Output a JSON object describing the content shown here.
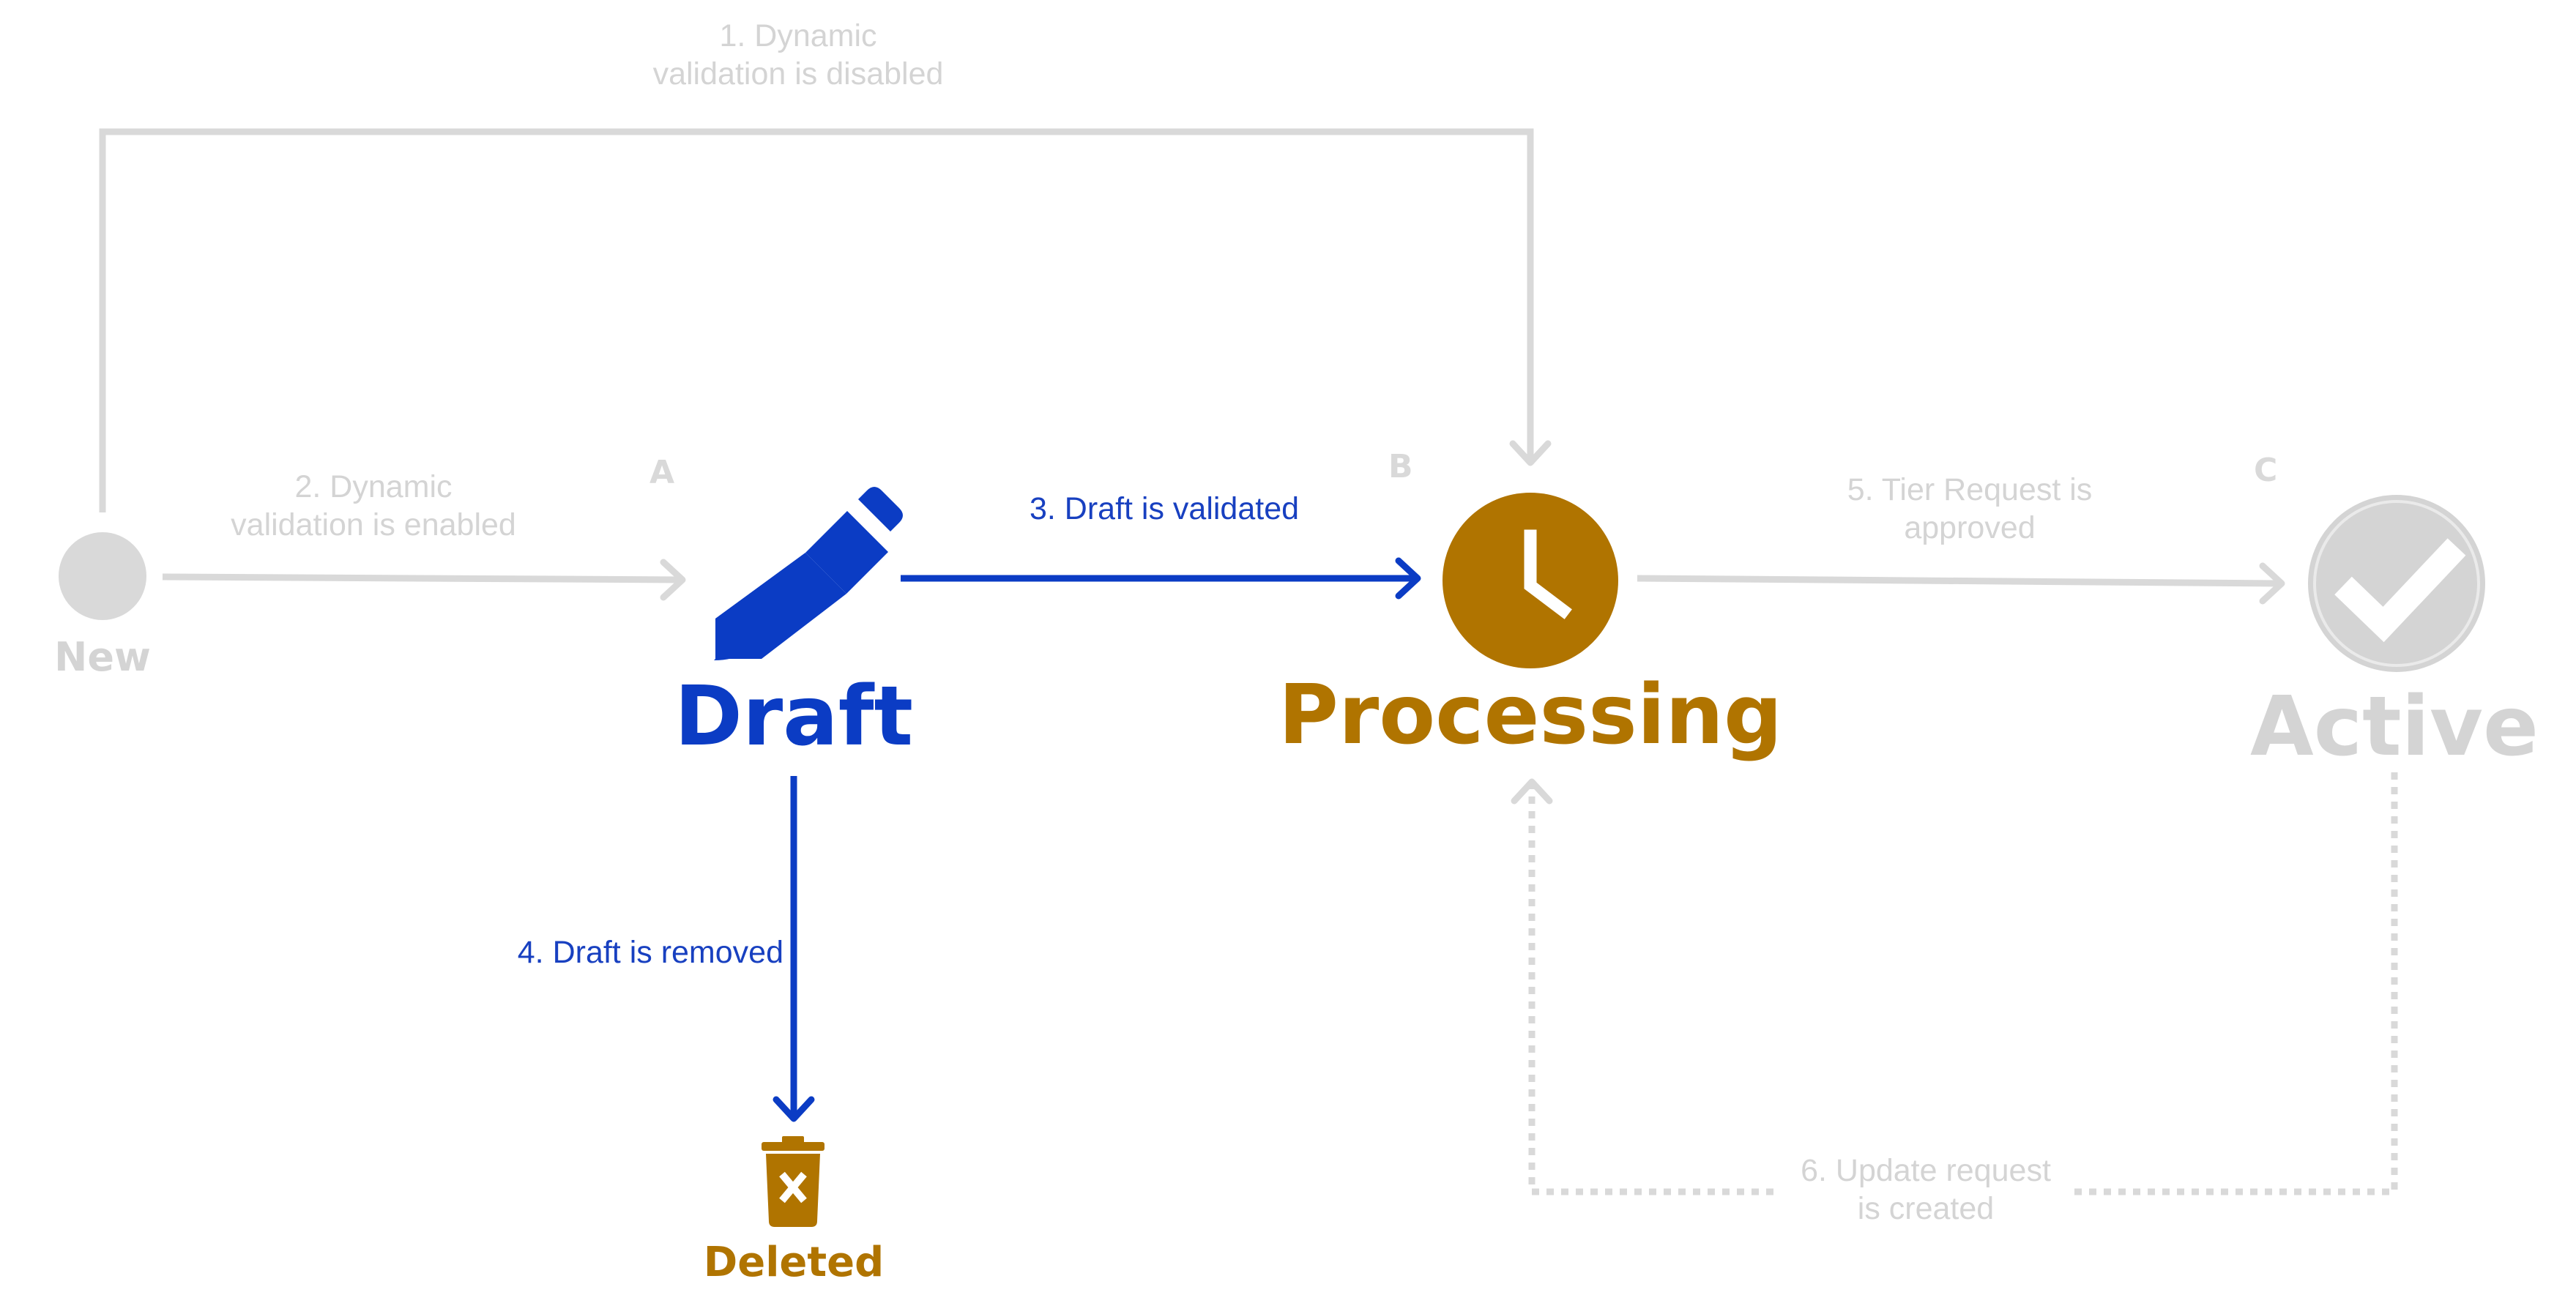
{
  "colors": {
    "inactive": "#d9d9d9",
    "inactive_text": "#d4d4d4",
    "draft_blue": "#0b3cc4",
    "processing_brown": "#b07400",
    "label_blue": "#1840c0"
  },
  "states": {
    "new": {
      "label": "New",
      "icon": "circle-icon"
    },
    "draft": {
      "label": "Draft",
      "tag": "A",
      "icon": "pencil-icon"
    },
    "processing": {
      "label": "Processing",
      "tag": "B",
      "icon": "clock-icon"
    },
    "active": {
      "label": "Active",
      "tag": "C",
      "icon": "checkmark-icon"
    },
    "deleted": {
      "label": "Deleted",
      "icon": "trash-icon"
    }
  },
  "transitions": {
    "t1": "1. Dynamic\nvalidation is disabled",
    "t2": "2. Dynamic\nvalidation is enabled",
    "t3": "3. Draft is validated",
    "t4": "4. Draft is removed",
    "t5": "5. Tier Request is\napproved",
    "t6": "6. Update request\nis created"
  }
}
